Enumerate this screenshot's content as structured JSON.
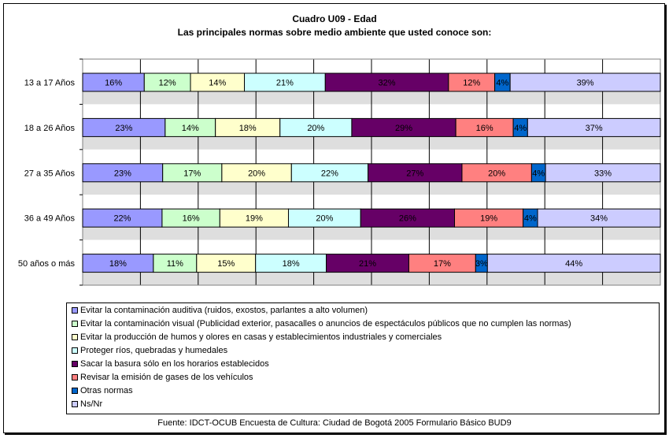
{
  "chart_data": {
    "type": "bar",
    "orientation": "horizontal",
    "stacked": "100%",
    "title": "Cuadro U09 - Edad",
    "subtitle": "Las principales normas sobre medio ambiente que usted conoce son:",
    "categories": [
      "13 a 17 Años",
      "18 a 26 Años",
      "27 a 35 Años",
      "36 a 49 Años",
      "50 años o más"
    ],
    "series": [
      {
        "name": "Evitar la contaminación auditiva (ruidos, exostos, parlantes a alto volumen)",
        "color": "#9999ff",
        "values": [
          16,
          23,
          23,
          22,
          18
        ]
      },
      {
        "name": "Evitar la contaminación visual (Publicidad exterior, pasacalles o anuncios de espectáculos públicos que no cumplen las normas)",
        "color": "#ccffcc",
        "values": [
          12,
          14,
          17,
          16,
          11
        ]
      },
      {
        "name": "Evitar la producción de humos y olores en casas y establecimientos industriales y comerciales",
        "color": "#ffffcc",
        "values": [
          14,
          18,
          20,
          19,
          15
        ]
      },
      {
        "name": "Proteger ríos, quebradas y humedales",
        "color": "#ccffff",
        "values": [
          21,
          20,
          22,
          20,
          18
        ]
      },
      {
        "name": "Sacar la basura sólo en los horarios establecidos",
        "color": "#660066",
        "values": [
          32,
          29,
          27,
          26,
          21
        ]
      },
      {
        "name": "Revisar la emisión de gases de los vehículos",
        "color": "#ff8080",
        "values": [
          12,
          16,
          20,
          19,
          17
        ]
      },
      {
        "name": "Otras normas",
        "color": "#0066cc",
        "values": [
          4,
          4,
          4,
          4,
          3
        ]
      },
      {
        "name": "Ns/Nr",
        "color": "#ccccff",
        "values": [
          39,
          37,
          33,
          34,
          44
        ]
      }
    ],
    "value_labels": [
      [
        "16%",
        "12%",
        "14%",
        "21%",
        "32%",
        "12%",
        "4%",
        "39%"
      ],
      [
        "23%",
        "14%",
        "18%",
        "20%",
        "29%",
        "16%",
        "4%",
        "37%"
      ],
      [
        "23%",
        "17%",
        "20%",
        "22%",
        "27%",
        "20%",
        "4%",
        "33%"
      ],
      [
        "22%",
        "16%",
        "19%",
        "20%",
        "26%",
        "19%",
        "4%",
        "34%"
      ],
      [
        "18%",
        "11%",
        "15%",
        "18%",
        "21%",
        "17%",
        "3%",
        "44%"
      ]
    ],
    "grid": true,
    "legend_position": "bottom"
  },
  "source": "Fuente: IDCT-OCUB Encuesta de Cultura: Ciudad de Bogotá 2005 Formulario Básico BUD9",
  "colors": {
    "plot_band_light": "#ffffff",
    "plot_band_gray": "#dedede"
  }
}
